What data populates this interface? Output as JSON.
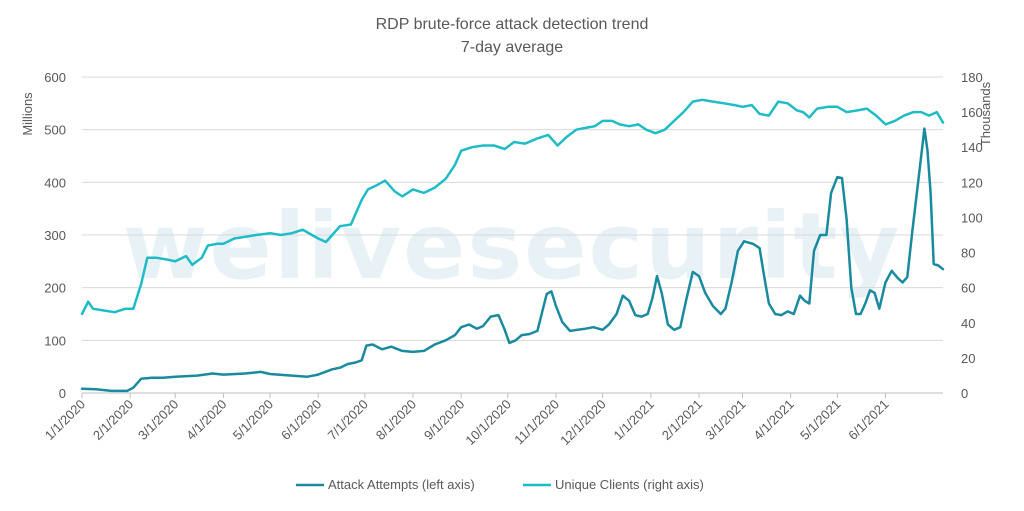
{
  "chart_data": {
    "type": "line",
    "title": "RDP brute-force attack detection trend",
    "subtitle": "7-day average",
    "ylabel_left": "Millions",
    "ylabel_right": "Thousands",
    "watermark": "welivesecurity",
    "ylim_left": [
      0,
      600
    ],
    "ylim_right": [
      0,
      180
    ],
    "yticks_left": [
      0,
      100,
      200,
      300,
      400,
      500,
      600
    ],
    "yticks_right": [
      0,
      20,
      40,
      60,
      80,
      100,
      120,
      140,
      160,
      180
    ],
    "x_range": [
      "2020-01-01",
      "2021-07-08"
    ],
    "xticks": [
      {
        "date": "2020-01-01",
        "label": "1/1/2020"
      },
      {
        "date": "2020-02-01",
        "label": "2/1/2020"
      },
      {
        "date": "2020-03-01",
        "label": "3/1/2020"
      },
      {
        "date": "2020-04-01",
        "label": "4/1/2020"
      },
      {
        "date": "2020-05-01",
        "label": "5/1/2020"
      },
      {
        "date": "2020-06-01",
        "label": "6/1/2020"
      },
      {
        "date": "2020-07-01",
        "label": "7/1/2020"
      },
      {
        "date": "2020-08-01",
        "label": "8/1/2020"
      },
      {
        "date": "2020-09-01",
        "label": "9/1/2020"
      },
      {
        "date": "2020-10-01",
        "label": "10/1/2020"
      },
      {
        "date": "2020-11-01",
        "label": "11/1/2020"
      },
      {
        "date": "2020-12-01",
        "label": "12/1/2020"
      },
      {
        "date": "2021-01-01",
        "label": "1/1/2021"
      },
      {
        "date": "2021-02-01",
        "label": "2/1/2021"
      },
      {
        "date": "2021-03-01",
        "label": "3/1/2021"
      },
      {
        "date": "2021-04-01",
        "label": "4/1/2021"
      },
      {
        "date": "2021-05-01",
        "label": "5/1/2021"
      },
      {
        "date": "2021-06-01",
        "label": "6/1/2021"
      }
    ],
    "grid": true,
    "legend_position": "bottom",
    "series": [
      {
        "name": "Attack Attempts (left axis)",
        "axis": "left",
        "color": "#1a8a9e",
        "points": [
          [
            "2020-01-01",
            8
          ],
          [
            "2020-01-10",
            7
          ],
          [
            "2020-01-20",
            4
          ],
          [
            "2020-01-30",
            4
          ],
          [
            "2020-02-03",
            10
          ],
          [
            "2020-02-08",
            27
          ],
          [
            "2020-02-15",
            29
          ],
          [
            "2020-02-22",
            29
          ],
          [
            "2020-03-01",
            31
          ],
          [
            "2020-03-15",
            33
          ],
          [
            "2020-03-25",
            37
          ],
          [
            "2020-04-01",
            35
          ],
          [
            "2020-04-15",
            37
          ],
          [
            "2020-04-25",
            40
          ],
          [
            "2020-05-01",
            36
          ],
          [
            "2020-05-15",
            33
          ],
          [
            "2020-05-25",
            31
          ],
          [
            "2020-06-01",
            35
          ],
          [
            "2020-06-10",
            45
          ],
          [
            "2020-06-15",
            48
          ],
          [
            "2020-06-20",
            55
          ],
          [
            "2020-06-25",
            58
          ],
          [
            "2020-06-29",
            62
          ],
          [
            "2020-07-02",
            90
          ],
          [
            "2020-07-06",
            92
          ],
          [
            "2020-07-12",
            83
          ],
          [
            "2020-07-18",
            88
          ],
          [
            "2020-07-25",
            80
          ],
          [
            "2020-08-01",
            78
          ],
          [
            "2020-08-08",
            80
          ],
          [
            "2020-08-15",
            92
          ],
          [
            "2020-08-22",
            100
          ],
          [
            "2020-08-28",
            110
          ],
          [
            "2020-09-01",
            125
          ],
          [
            "2020-09-06",
            130
          ],
          [
            "2020-09-11",
            122
          ],
          [
            "2020-09-15",
            127
          ],
          [
            "2020-09-20",
            145
          ],
          [
            "2020-09-25",
            148
          ],
          [
            "2020-09-29",
            120
          ],
          [
            "2020-10-02",
            95
          ],
          [
            "2020-10-06",
            100
          ],
          [
            "2020-10-10",
            110
          ],
          [
            "2020-10-15",
            112
          ],
          [
            "2020-10-20",
            118
          ],
          [
            "2020-10-26",
            188
          ],
          [
            "2020-10-29",
            193
          ],
          [
            "2020-11-01",
            165
          ],
          [
            "2020-11-05",
            135
          ],
          [
            "2020-11-10",
            118
          ],
          [
            "2020-11-15",
            120
          ],
          [
            "2020-11-20",
            122
          ],
          [
            "2020-11-25",
            125
          ],
          [
            "2020-12-01",
            120
          ],
          [
            "2020-12-05",
            130
          ],
          [
            "2020-12-10",
            150
          ],
          [
            "2020-12-14",
            185
          ],
          [
            "2020-12-18",
            175
          ],
          [
            "2020-12-22",
            148
          ],
          [
            "2020-12-26",
            145
          ],
          [
            "2020-12-30",
            150
          ],
          [
            "2021-01-02",
            180
          ],
          [
            "2021-01-05",
            222
          ],
          [
            "2021-01-08",
            190
          ],
          [
            "2021-01-12",
            130
          ],
          [
            "2021-01-16",
            120
          ],
          [
            "2021-01-20",
            125
          ],
          [
            "2021-01-24",
            180
          ],
          [
            "2021-01-28",
            230
          ],
          [
            "2021-02-01",
            222
          ],
          [
            "2021-02-05",
            190
          ],
          [
            "2021-02-10",
            165
          ],
          [
            "2021-02-15",
            150
          ],
          [
            "2021-02-18",
            160
          ],
          [
            "2021-02-22",
            210
          ],
          [
            "2021-02-26",
            270
          ],
          [
            "2021-03-02",
            288
          ],
          [
            "2021-03-08",
            283
          ],
          [
            "2021-03-12",
            275
          ],
          [
            "2021-03-15",
            220
          ],
          [
            "2021-03-18",
            170
          ],
          [
            "2021-03-22",
            150
          ],
          [
            "2021-03-26",
            148
          ],
          [
            "2021-03-30",
            155
          ],
          [
            "2021-04-03",
            150
          ],
          [
            "2021-04-07",
            185
          ],
          [
            "2021-04-10",
            175
          ],
          [
            "2021-04-13",
            170
          ],
          [
            "2021-04-16",
            270
          ],
          [
            "2021-04-20",
            300
          ],
          [
            "2021-04-24",
            300
          ],
          [
            "2021-04-27",
            380
          ],
          [
            "2021-05-01",
            410
          ],
          [
            "2021-05-04",
            408
          ],
          [
            "2021-05-07",
            330
          ],
          [
            "2021-05-10",
            200
          ],
          [
            "2021-05-13",
            150
          ],
          [
            "2021-05-16",
            150
          ],
          [
            "2021-05-19",
            170
          ],
          [
            "2021-05-22",
            195
          ],
          [
            "2021-05-25",
            190
          ],
          [
            "2021-05-28",
            160
          ],
          [
            "2021-06-01",
            210
          ],
          [
            "2021-06-05",
            232
          ],
          [
            "2021-06-09",
            218
          ],
          [
            "2021-06-12",
            210
          ],
          [
            "2021-06-15",
            220
          ],
          [
            "2021-06-18",
            300
          ],
          [
            "2021-06-22",
            400
          ],
          [
            "2021-06-24",
            450
          ],
          [
            "2021-06-26",
            502
          ],
          [
            "2021-06-28",
            460
          ],
          [
            "2021-06-30",
            380
          ],
          [
            "2021-07-02",
            245
          ],
          [
            "2021-07-05",
            242
          ],
          [
            "2021-07-08",
            235
          ]
        ]
      },
      {
        "name": "Unique Clients (right axis)",
        "axis": "right",
        "color": "#1fbcc6",
        "points": [
          [
            "2020-01-01",
            45
          ],
          [
            "2020-01-05",
            52
          ],
          [
            "2020-01-08",
            48
          ],
          [
            "2020-01-15",
            47
          ],
          [
            "2020-01-22",
            46
          ],
          [
            "2020-01-29",
            48
          ],
          [
            "2020-02-03",
            48
          ],
          [
            "2020-02-08",
            62
          ],
          [
            "2020-02-12",
            77
          ],
          [
            "2020-02-18",
            77
          ],
          [
            "2020-02-25",
            76
          ],
          [
            "2020-03-01",
            75
          ],
          [
            "2020-03-08",
            78
          ],
          [
            "2020-03-12",
            73
          ],
          [
            "2020-03-18",
            77
          ],
          [
            "2020-03-22",
            84
          ],
          [
            "2020-03-28",
            85
          ],
          [
            "2020-04-01",
            85
          ],
          [
            "2020-04-08",
            88
          ],
          [
            "2020-04-15",
            89
          ],
          [
            "2020-04-22",
            90
          ],
          [
            "2020-05-01",
            91
          ],
          [
            "2020-05-08",
            90
          ],
          [
            "2020-05-15",
            91
          ],
          [
            "2020-05-22",
            93
          ],
          [
            "2020-05-28",
            90
          ],
          [
            "2020-06-01",
            88
          ],
          [
            "2020-06-06",
            86
          ],
          [
            "2020-06-10",
            90
          ],
          [
            "2020-06-15",
            95
          ],
          [
            "2020-06-22",
            96
          ],
          [
            "2020-06-29",
            110
          ],
          [
            "2020-07-03",
            116
          ],
          [
            "2020-07-08",
            118
          ],
          [
            "2020-07-14",
            121
          ],
          [
            "2020-07-20",
            115
          ],
          [
            "2020-07-25",
            112
          ],
          [
            "2020-08-01",
            116
          ],
          [
            "2020-08-08",
            114
          ],
          [
            "2020-08-15",
            117
          ],
          [
            "2020-08-22",
            122
          ],
          [
            "2020-08-28",
            130
          ],
          [
            "2020-09-01",
            138
          ],
          [
            "2020-09-08",
            140
          ],
          [
            "2020-09-15",
            141
          ],
          [
            "2020-09-22",
            141
          ],
          [
            "2020-09-29",
            139
          ],
          [
            "2020-10-05",
            143
          ],
          [
            "2020-10-12",
            142
          ],
          [
            "2020-10-20",
            145
          ],
          [
            "2020-10-27",
            147
          ],
          [
            "2020-11-02",
            141
          ],
          [
            "2020-11-08",
            146
          ],
          [
            "2020-11-14",
            150
          ],
          [
            "2020-11-20",
            151
          ],
          [
            "2020-11-26",
            152
          ],
          [
            "2020-12-01",
            155
          ],
          [
            "2020-12-07",
            155
          ],
          [
            "2020-12-12",
            153
          ],
          [
            "2020-12-18",
            152
          ],
          [
            "2020-12-24",
            153
          ],
          [
            "2020-12-29",
            150
          ],
          [
            "2021-01-04",
            148
          ],
          [
            "2021-01-10",
            150
          ],
          [
            "2021-01-16",
            155
          ],
          [
            "2021-01-22",
            160
          ],
          [
            "2021-01-28",
            166
          ],
          [
            "2021-02-03",
            167
          ],
          [
            "2021-02-10",
            166
          ],
          [
            "2021-02-17",
            165
          ],
          [
            "2021-02-24",
            164
          ],
          [
            "2021-03-01",
            163
          ],
          [
            "2021-03-07",
            164
          ],
          [
            "2021-03-12",
            159
          ],
          [
            "2021-03-18",
            158
          ],
          [
            "2021-03-24",
            166
          ],
          [
            "2021-03-30",
            165
          ],
          [
            "2021-04-05",
            161
          ],
          [
            "2021-04-09",
            160
          ],
          [
            "2021-04-13",
            157
          ],
          [
            "2021-04-18",
            162
          ],
          [
            "2021-04-25",
            163
          ],
          [
            "2021-05-01",
            163
          ],
          [
            "2021-05-07",
            160
          ],
          [
            "2021-05-14",
            161
          ],
          [
            "2021-05-20",
            162
          ],
          [
            "2021-05-26",
            158
          ],
          [
            "2021-06-01",
            153
          ],
          [
            "2021-06-07",
            155
          ],
          [
            "2021-06-13",
            158
          ],
          [
            "2021-06-19",
            160
          ],
          [
            "2021-06-24",
            160
          ],
          [
            "2021-06-29",
            158
          ],
          [
            "2021-07-04",
            160
          ],
          [
            "2021-07-08",
            154
          ]
        ]
      }
    ]
  }
}
